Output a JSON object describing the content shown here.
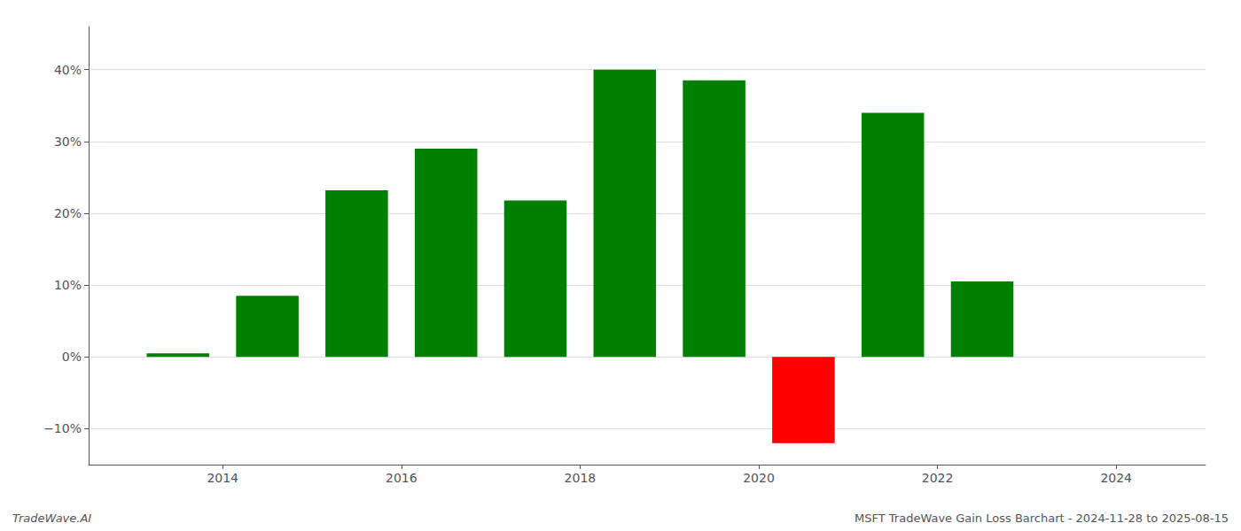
{
  "chart_data": {
    "type": "bar",
    "x": [
      2013.5,
      2014.5,
      2015.5,
      2016.5,
      2017.5,
      2018.5,
      2019.5,
      2020.5,
      2021.5,
      2022.5
    ],
    "values": [
      0.5,
      8.5,
      23.2,
      29.0,
      21.8,
      40.0,
      38.5,
      -12.0,
      34.0,
      10.5
    ],
    "colors": [
      "#008000",
      "#008000",
      "#008000",
      "#008000",
      "#008000",
      "#008000",
      "#008000",
      "#ff0000",
      "#008000",
      "#008000"
    ],
    "xlim": [
      2012.5,
      2025.0
    ],
    "xticks": [
      2014,
      2016,
      2018,
      2020,
      2022,
      2024
    ],
    "ylim": [
      -15,
      46
    ],
    "yticks": [
      {
        "value": -10,
        "label": "−10%"
      },
      {
        "value": 0,
        "label": "0%"
      },
      {
        "value": 10,
        "label": "10%"
      },
      {
        "value": 20,
        "label": "20%"
      },
      {
        "value": 30,
        "label": "30%"
      },
      {
        "value": 40,
        "label": "40%"
      }
    ],
    "grid": true,
    "annotations": [
      "TradeWave.AI",
      "MSFT TradeWave Gain Loss Barchart - 2024-11-28 to 2025-08-15"
    ]
  }
}
